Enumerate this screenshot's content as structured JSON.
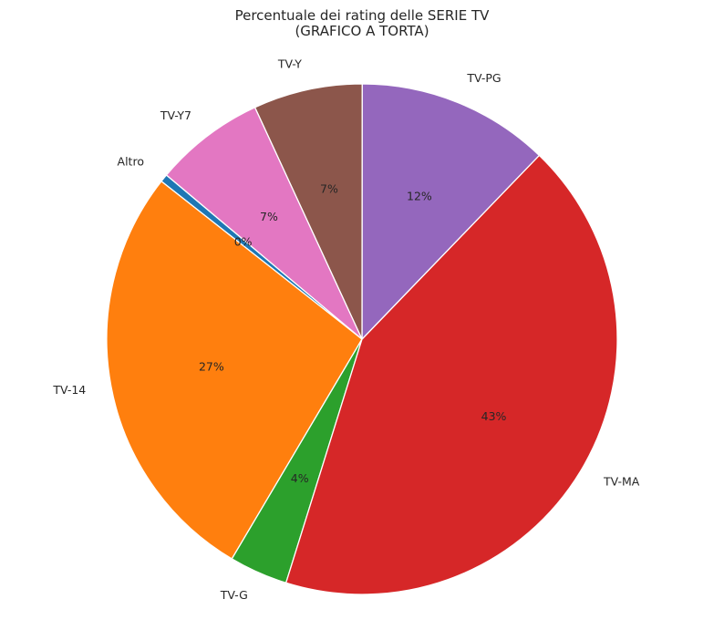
{
  "chart_data": {
    "type": "pie",
    "title_line1": "Percentuale dei rating delle SERIE TV",
    "title_line2": "(GRAFICO A TORTA)",
    "categories": [
      "Altro",
      "TV-14",
      "TV-G",
      "TV-MA",
      "TV-PG",
      "TV-Y",
      "TV-Y7"
    ],
    "values": [
      0.5,
      27.1,
      3.7,
      42.6,
      12.2,
      6.9,
      7.0
    ],
    "pct_labels": [
      "0%",
      "27%",
      "4%",
      "43%",
      "12%",
      "7%",
      "7%"
    ],
    "colors": [
      "#1f77b4",
      "#ff7f0e",
      "#2ca02c",
      "#d62728",
      "#9467bd",
      "#8c564b",
      "#e377c2"
    ],
    "start_angle_deg": 140,
    "direction": "counterclockwise"
  }
}
